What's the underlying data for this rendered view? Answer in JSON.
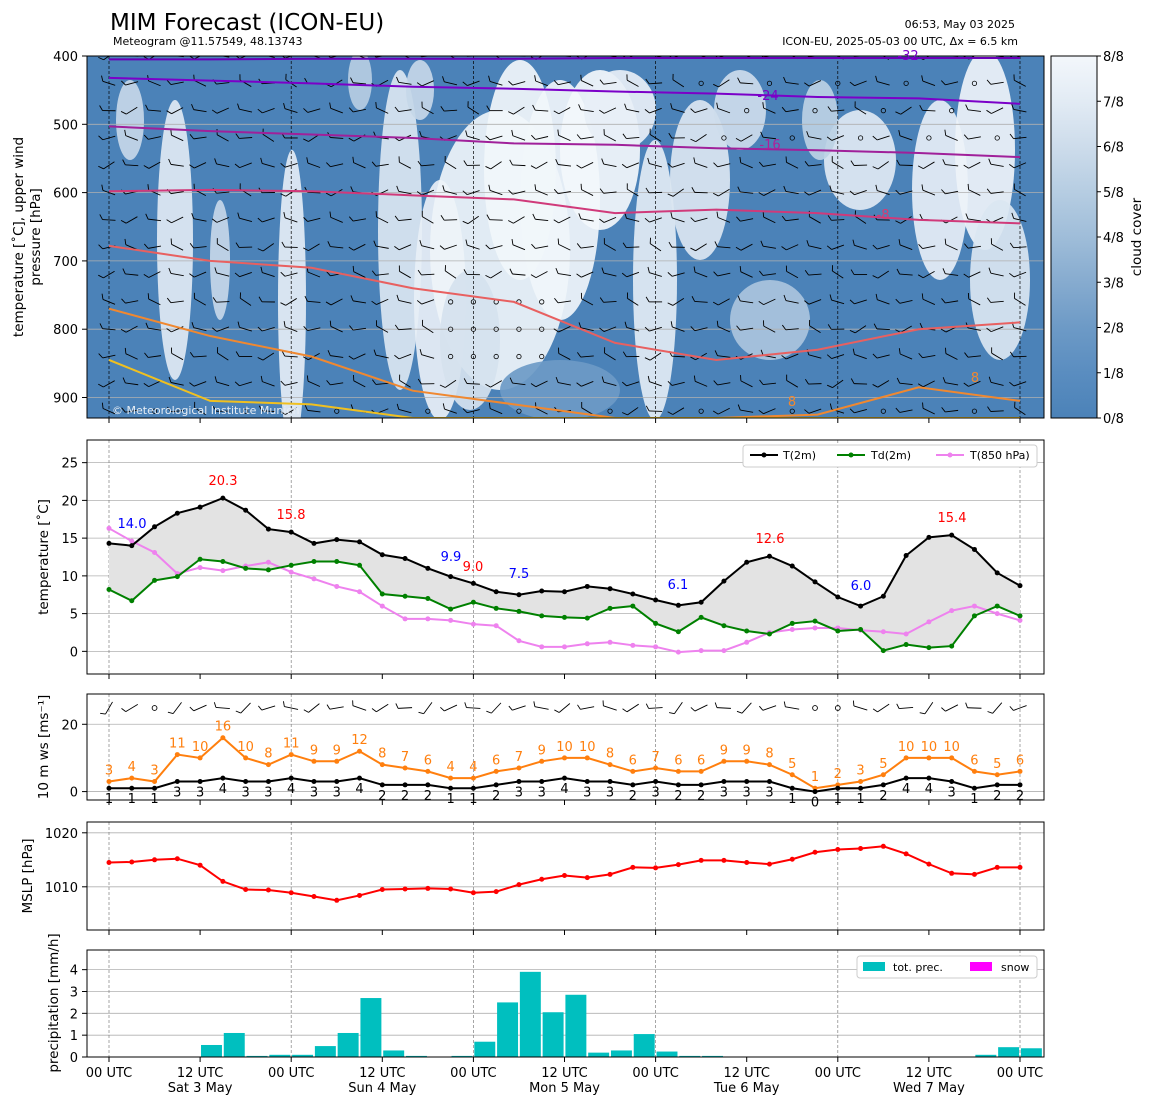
{
  "header": {
    "title": "MIM Forecast (ICON-EU)",
    "subtitle": "Meteogram @11.57549, 48.13743",
    "time": "06:53, May 03 2025",
    "model_info": "ICON-EU, 2025-05-03 00 UTC, Δx = 6.5 km",
    "copyright": "© Meteorological Institute Munich"
  },
  "colors": {
    "t2m": "#000000",
    "td2m": "#008000",
    "t850": "#ee82ee",
    "wind_speed": "#ff7f0e",
    "wind_mean": "#000000",
    "mslp": "#ff0000",
    "precip": "#00bfbf",
    "snow": "#ff00ff",
    "cloud_base": "#4b82b8",
    "fill_between": "#e3e3e3"
  },
  "x_axis": {
    "tick_labels": [
      "00 UTC",
      "12 UTC",
      "00 UTC",
      "12 UTC",
      "00 UTC",
      "12 UTC",
      "00 UTC",
      "12 UTC",
      "00 UTC",
      "12 UTC",
      "00 UTC"
    ],
    "day_labels": [
      "Sat 3 May",
      "Sun 4 May",
      "Mon 5 May",
      "Tue 6 May",
      "Wed 7 May"
    ]
  },
  "chart_data": [
    {
      "type": "heatmap",
      "name": "upper-air",
      "ylabel": "temperature [˚C], upper wind\npressure [hPa]",
      "y_ticks": [
        400,
        500,
        600,
        700,
        800,
        900
      ],
      "ylim": [
        930,
        400
      ],
      "colorbar_label": "cloud cover",
      "colorbar_ticks": [
        "0/8",
        "1/8",
        "2/8",
        "3/8",
        "4/8",
        "5/8",
        "6/8",
        "7/8",
        "8/8"
      ],
      "isotherm_labels": [
        {
          "text": "-32",
          "color": "#7b00c8"
        },
        {
          "text": "-24",
          "color": "#7b00c8"
        },
        {
          "text": "-16",
          "color": "#b0209a"
        },
        {
          "text": "-8",
          "color": "#d83a72"
        },
        {
          "text": "8",
          "color": "#f08830"
        },
        {
          "text": "8",
          "color": "#f08830"
        }
      ],
      "isotherms": [
        {
          "name": "-32",
          "color": "#6a00b8",
          "p": [
            405,
            405,
            404,
            404,
            404,
            403,
            403,
            403,
            403,
            403
          ]
        },
        {
          "name": "-24",
          "color": "#7b00c8",
          "p": [
            432,
            436,
            440,
            445,
            448,
            452,
            455,
            460,
            462,
            470
          ]
        },
        {
          "name": "-16",
          "color": "#a0209a",
          "p": [
            503,
            510,
            515,
            520,
            528,
            530,
            535,
            538,
            542,
            548
          ]
        },
        {
          "name": "-8",
          "color": "#d03a7a",
          "p": [
            598,
            596,
            598,
            604,
            610,
            630,
            625,
            630,
            640,
            645
          ]
        },
        {
          "name": "0",
          "color": "#e86060",
          "p": [
            678,
            700,
            710,
            740,
            760,
            820,
            845,
            830,
            800,
            790
          ]
        },
        {
          "name": "8",
          "color": "#f08830",
          "p": [
            770,
            810,
            840,
            890,
            910,
            930,
            930,
            925,
            885,
            905
          ]
        },
        {
          "name": "16",
          "color": "#f0c020",
          "p": [
            845,
            905,
            910,
            930,
            930,
            930,
            930,
            930,
            930,
            930
          ]
        }
      ]
    },
    {
      "type": "line",
      "name": "temperature",
      "ylabel": "temperature [˚C]",
      "ylim": [
        -3,
        28
      ],
      "y_ticks": [
        0,
        5,
        10,
        15,
        20,
        25
      ],
      "series": [
        {
          "name": "T(2m)",
          "values": [
            14.3,
            14.0,
            16.5,
            18.3,
            19.1,
            20.3,
            18.7,
            16.2,
            15.8,
            14.3,
            14.8,
            14.5,
            12.8,
            12.3,
            11.0,
            9.9,
            9.0,
            7.9,
            7.5,
            8.0,
            7.9,
            8.6,
            8.3,
            7.6,
            6.8,
            6.1,
            6.5,
            9.3,
            11.8,
            12.6,
            11.3,
            9.2,
            7.2,
            6.0,
            7.3,
            12.7,
            15.1,
            15.4,
            13.5,
            10.4,
            8.7
          ]
        },
        {
          "name": "Td(2m)",
          "values": [
            8.2,
            6.7,
            9.4,
            9.9,
            12.2,
            11.9,
            11.0,
            10.8,
            11.4,
            11.9,
            11.9,
            11.4,
            7.6,
            7.3,
            7.0,
            5.6,
            6.5,
            5.7,
            5.3,
            4.7,
            4.5,
            4.4,
            5.7,
            6.0,
            3.7,
            2.6,
            4.5,
            3.4,
            2.7,
            2.3,
            3.7,
            4.0,
            2.7,
            2.9,
            0.1,
            0.9,
            0.5,
            0.7,
            4.7,
            6.0,
            4.7
          ]
        },
        {
          "name": "T(850 hPa)",
          "values": [
            16.3,
            14.6,
            13.1,
            10.3,
            11.1,
            10.7,
            11.3,
            11.8,
            10.5,
            9.6,
            8.6,
            7.9,
            6.0,
            4.3,
            4.3,
            4.1,
            3.6,
            3.4,
            1.4,
            0.6,
            0.6,
            1.0,
            1.2,
            0.8,
            0.6,
            -0.1,
            0.1,
            0.1,
            1.2,
            2.5,
            2.9,
            3.1,
            3.1,
            2.8,
            2.6,
            2.3,
            3.9,
            5.4,
            6.0,
            5.0,
            4.1
          ]
        }
      ],
      "annotations": [
        {
          "text": "14.0",
          "color": "blue"
        },
        {
          "text": "20.3",
          "color": "red"
        },
        {
          "text": "15.8",
          "color": "red"
        },
        {
          "text": "9.9",
          "color": "blue"
        },
        {
          "text": "9.0",
          "color": "red"
        },
        {
          "text": "7.5",
          "color": "blue"
        },
        {
          "text": "6.1",
          "color": "blue"
        },
        {
          "text": "12.6",
          "color": "red"
        },
        {
          "text": "6.0",
          "color": "blue"
        },
        {
          "text": "15.4",
          "color": "red"
        }
      ]
    },
    {
      "type": "line",
      "name": "wind",
      "ylabel": "10 m ws [ms⁻¹]",
      "ylim": [
        -2.5,
        29
      ],
      "y_ticks": [
        0,
        20
      ],
      "series": [
        {
          "name": "gust",
          "values": [
            3,
            4,
            3,
            11,
            10,
            16,
            10,
            8,
            11,
            9,
            9,
            12,
            8,
            7,
            6,
            4,
            4,
            6,
            7,
            9,
            10,
            10,
            8,
            6,
            7,
            6,
            6,
            9,
            9,
            8,
            5,
            1,
            2,
            3,
            5,
            10,
            10,
            10,
            6,
            5,
            6
          ]
        },
        {
          "name": "mean",
          "values": [
            1,
            1,
            1,
            3,
            3,
            4,
            3,
            3,
            4,
            3,
            3,
            4,
            2,
            2,
            2,
            1,
            1,
            2,
            3,
            3,
            4,
            3,
            3,
            2,
            3,
            2,
            2,
            3,
            3,
            3,
            1,
            0,
            1,
            1,
            2,
            4,
            4,
            3,
            1,
            2,
            2
          ]
        }
      ]
    },
    {
      "type": "line",
      "name": "mslp",
      "ylabel": "MSLP [hPa]",
      "ylim": [
        1002,
        1022
      ],
      "y_ticks": [
        1010,
        1020
      ],
      "series": [
        {
          "name": "MSLP",
          "values": [
            1014.5,
            1014.6,
            1015.0,
            1015.2,
            1014.0,
            1011.0,
            1009.5,
            1009.4,
            1008.9,
            1008.2,
            1007.5,
            1008.4,
            1009.5,
            1009.6,
            1009.7,
            1009.6,
            1008.9,
            1009.1,
            1010.4,
            1011.4,
            1012.1,
            1011.7,
            1012.3,
            1013.6,
            1013.5,
            1014.1,
            1014.9,
            1014.9,
            1014.5,
            1014.2,
            1015.1,
            1016.4,
            1016.9,
            1017.1,
            1017.5,
            1016.1,
            1014.2,
            1012.5,
            1012.3,
            1013.6,
            1013.6
          ]
        }
      ]
    },
    {
      "type": "bar",
      "name": "precipitation",
      "ylabel": "precipitation [mm/h]",
      "ylim": [
        0,
        4.9
      ],
      "y_ticks": [
        0,
        1,
        2,
        3,
        4
      ],
      "series": [
        {
          "name": "tot. prec.",
          "values": [
            0,
            0,
            0,
            0,
            0.55,
            1.1,
            0.05,
            0.1,
            0.1,
            0.5,
            1.1,
            2.7,
            0.3,
            0.05,
            0,
            0.05,
            0.7,
            2.5,
            3.9,
            2.05,
            2.85,
            0.2,
            0.3,
            1.05,
            0.25,
            0.05,
            0.05,
            0,
            0,
            0,
            0,
            0,
            0,
            0,
            0,
            0,
            0,
            0,
            0.1,
            0.45,
            0.4
          ]
        },
        {
          "name": "snow",
          "values": [
            0,
            0,
            0,
            0,
            0,
            0,
            0,
            0,
            0,
            0,
            0,
            0,
            0,
            0,
            0,
            0,
            0,
            0,
            0,
            0,
            0,
            0,
            0,
            0,
            0,
            0,
            0,
            0,
            0,
            0,
            0,
            0,
            0,
            0,
            0,
            0,
            0,
            0,
            0,
            0,
            0
          ]
        }
      ]
    }
  ]
}
